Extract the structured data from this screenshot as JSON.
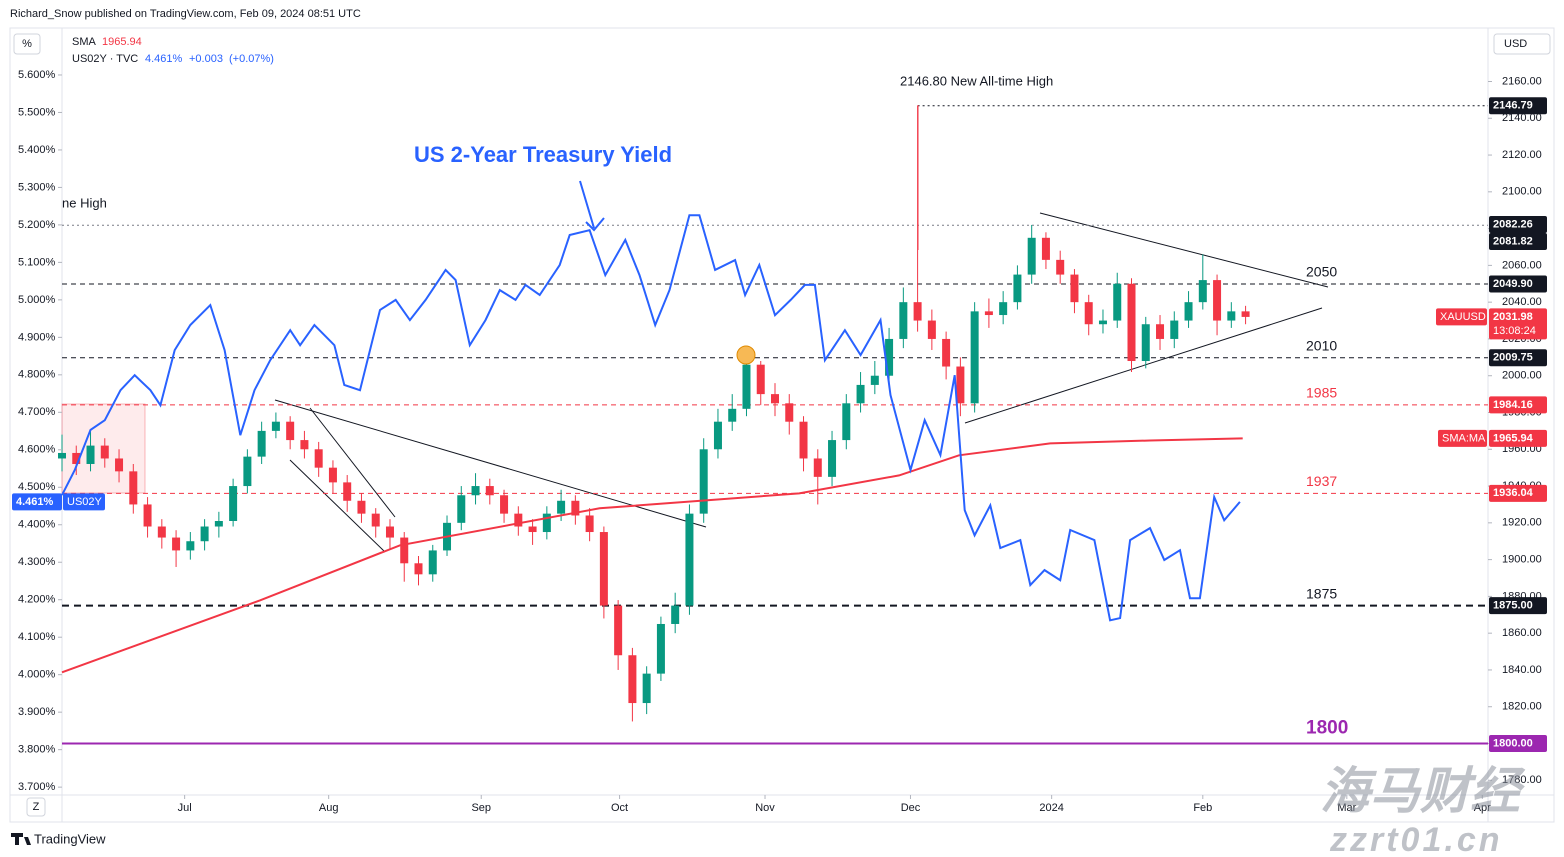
{
  "chart_data": {
    "type": "candlestick",
    "subtitle": "Richard_Snow published on TradingView.com, Feb 09, 2024 08:51 UTC",
    "grid": false,
    "xlim": [
      0,
      100
    ],
    "xticks": [
      {
        "value": 8.6,
        "label": "Jul"
      },
      {
        "value": 18.7,
        "label": "Aug"
      },
      {
        "value": 29.4,
        "label": "Sep"
      },
      {
        "value": 39.1,
        "label": "Oct"
      },
      {
        "value": 49.3,
        "label": "Nov"
      },
      {
        "value": 59.5,
        "label": "Dec"
      },
      {
        "value": 69.4,
        "label": "2024"
      },
      {
        "value": 80.0,
        "label": "Feb"
      },
      {
        "value": 90.1,
        "label": "Mar"
      },
      {
        "value": 99.6,
        "label": "Apr"
      }
    ],
    "y_axis_label": "USD",
    "ylim": [
      1772,
      2188
    ],
    "yticks": [
      {
        "value": 1780,
        "label": "1780.00"
      },
      {
        "value": 1800,
        "label": "1800.00"
      },
      {
        "value": 1820,
        "label": "1820.00"
      },
      {
        "value": 1840,
        "label": "1840.00"
      },
      {
        "value": 1860,
        "label": "1860.00"
      },
      {
        "value": 1880,
        "label": "1880.00"
      },
      {
        "value": 1900,
        "label": "1900.00"
      },
      {
        "value": 1920,
        "label": "1920.00"
      },
      {
        "value": 1940,
        "label": "1940.00"
      },
      {
        "value": 1960,
        "label": "1960.00"
      },
      {
        "value": 1980,
        "label": "1980.00"
      },
      {
        "value": 2000,
        "label": "2000.00"
      },
      {
        "value": 2020,
        "label": "2020.00"
      },
      {
        "value": 2040,
        "label": "2040.00"
      },
      {
        "value": 2060,
        "label": "2060.00"
      },
      {
        "value": 2080,
        "label": "2080.00"
      },
      {
        "value": 2100,
        "label": "2100.00"
      },
      {
        "value": 2120,
        "label": "2120.00"
      },
      {
        "value": 2140,
        "label": "2140.00"
      },
      {
        "value": 2160,
        "label": "2160.00"
      }
    ],
    "y2_axis_label": "%",
    "y2lim": [
      3.679,
      5.72
    ],
    "y2ticks": [
      {
        "value": 3.7,
        "label": "3.700%"
      },
      {
        "value": 3.8,
        "label": "3.800%"
      },
      {
        "value": 3.9,
        "label": "3.900%"
      },
      {
        "value": 4.0,
        "label": "4.000%"
      },
      {
        "value": 4.1,
        "label": "4.100%"
      },
      {
        "value": 4.2,
        "label": "4.200%"
      },
      {
        "value": 4.3,
        "label": "4.300%"
      },
      {
        "value": 4.4,
        "label": "4.400%"
      },
      {
        "value": 4.5,
        "label": "4.500%"
      },
      {
        "value": 4.6,
        "label": "4.600%"
      },
      {
        "value": 4.7,
        "label": "4.700%"
      },
      {
        "value": 4.8,
        "label": "4.800%"
      },
      {
        "value": 4.9,
        "label": "4.900%"
      },
      {
        "value": 5.0,
        "label": "5.000%"
      },
      {
        "value": 5.1,
        "label": "5.100%"
      },
      {
        "value": 5.2,
        "label": "5.200%"
      },
      {
        "value": 5.3,
        "label": "5.300%"
      },
      {
        "value": 5.4,
        "label": "5.400%"
      },
      {
        "value": 5.5,
        "label": "5.500%"
      },
      {
        "value": 5.6,
        "label": "5.600%"
      }
    ],
    "series": [
      {
        "name": "XAUUSD",
        "up_color": "#089981",
        "down_color": "#f23645",
        "last_time": "13:08:24",
        "open": [
          1955,
          1958,
          1952,
          1962,
          1955,
          1948,
          1930,
          1918,
          1912,
          1905,
          1910,
          1918,
          1921,
          1940,
          1956,
          1970,
          1975,
          1965,
          1960,
          1950,
          1942,
          1932,
          1925,
          1918,
          1912,
          1898,
          1892,
          1905,
          1920,
          1935,
          1940,
          1935,
          1925,
          1918,
          1915,
          1925,
          1932,
          1924,
          1915,
          1875,
          1848,
          1822,
          1838,
          1865,
          1875,
          1925,
          1960,
          1975,
          1982,
          2006,
          1990,
          1985,
          1975,
          1955,
          1945,
          1965,
          1985,
          1995,
          2000,
          2020,
          2040,
          2030,
          2020,
          2005,
          1985,
          2035,
          2033,
          2040,
          2055,
          2075,
          2063,
          2055,
          2040,
          2028,
          2030,
          2050,
          2008,
          2028,
          2020,
          2030,
          2040,
          2052,
          2030,
          2035
        ],
        "high": [
          1968,
          1962,
          1970,
          1966,
          1960,
          1952,
          1934,
          1922,
          1916,
          1915,
          1922,
          1926,
          1944,
          1960,
          1975,
          1980,
          1978,
          1970,
          1964,
          1954,
          1946,
          1936,
          1928,
          1922,
          1915,
          1902,
          1908,
          1924,
          1940,
          1947,
          1944,
          1938,
          1929,
          1922,
          1929,
          1938,
          1935,
          1928,
          1918,
          1878,
          1852,
          1842,
          1869,
          1882,
          1930,
          1966,
          1982,
          1990,
          2010,
          2008,
          1996,
          1990,
          1978,
          1960,
          1970,
          1990,
          2002,
          2008,
          2026,
          2048,
          2146.8,
          2036,
          2024,
          2010,
          2040,
          2042,
          2046,
          2060,
          2082,
          2078,
          2068,
          2058,
          2044,
          2036,
          2056,
          2053,
          2032,
          2033,
          2035,
          2046,
          2066,
          2055,
          2040,
          2038
        ],
        "low": [
          1948,
          1946,
          1948,
          1950,
          1942,
          1925,
          1912,
          1906,
          1896,
          1900,
          1905,
          1912,
          1918,
          1936,
          1952,
          1966,
          1960,
          1955,
          1945,
          1936,
          1926,
          1920,
          1912,
          1906,
          1888,
          1886,
          1888,
          1902,
          1916,
          1930,
          1930,
          1920,
          1913,
          1908,
          1911,
          1921,
          1919,
          1910,
          1868,
          1840,
          1812,
          1816,
          1834,
          1860,
          1870,
          1920,
          1955,
          1970,
          1978,
          1984,
          1978,
          1968,
          1948,
          1930,
          1940,
          1960,
          1980,
          1990,
          1996,
          2015,
          2024,
          2014,
          1998,
          1978,
          1980,
          2026,
          2028,
          2036,
          2050,
          2058,
          2050,
          2034,
          2022,
          2023,
          2026,
          2002,
          2004,
          2014,
          2015,
          2026,
          2036,
          2022,
          2026,
          2028
        ],
        "close": [
          1958,
          1952,
          1962,
          1955,
          1948,
          1930,
          1918,
          1912,
          1905,
          1910,
          1918,
          1921,
          1940,
          1956,
          1970,
          1975,
          1965,
          1960,
          1950,
          1942,
          1932,
          1925,
          1918,
          1912,
          1898,
          1892,
          1905,
          1920,
          1935,
          1940,
          1935,
          1925,
          1918,
          1915,
          1925,
          1932,
          1924,
          1915,
          1875,
          1848,
          1822,
          1838,
          1865,
          1875,
          1925,
          1960,
          1975,
          1982,
          2006,
          1990,
          1985,
          1975,
          1955,
          1945,
          1965,
          1985,
          1995,
          2000,
          2020,
          2040,
          2030,
          2020,
          2005,
          1985,
          2035,
          2033,
          2040,
          2055,
          2075,
          2063,
          2055,
          2040,
          2028,
          2030,
          2050,
          2008,
          2028,
          2020,
          2030,
          2040,
          2052,
          2030,
          2035,
          2031.98
        ]
      },
      {
        "name": "SMA",
        "box_name": "SMA:MA",
        "type": "line",
        "color": "#f23645",
        "x": [
          0,
          13.9,
          23.7,
          37.7,
          51.7,
          58.7,
          62.9,
          69.3,
          76.3,
          82.8
        ],
        "values": [
          1838.7,
          1877.9,
          1907.8,
          1927.9,
          1936.0,
          1945.8,
          1956.7,
          1963.2,
          1964.8,
          1965.94
        ]
      },
      {
        "name": "US02Y",
        "legend_name": "US02Y · TVC",
        "type": "line",
        "axis": "y2",
        "color": "#2962ff",
        "last_label": "4.461%",
        "change": "+0.003",
        "change_pct": "(+0.07%)",
        "x": [
          0,
          0.9,
          2,
          3,
          4.1,
          5.1,
          6.2,
          6.9,
          7.9,
          9,
          10.4,
          11.4,
          12.5,
          13.5,
          14.6,
          16,
          16.7,
          17.7,
          19.1,
          19.8,
          20.9,
          22.3,
          23.4,
          24.4,
          25.5,
          26.2,
          26.9,
          27.6,
          28.6,
          29.7,
          30.7,
          31.8,
          32.5,
          33.5,
          34.9,
          35.6,
          37,
          38.1,
          39.5,
          40.5,
          41.6,
          42.6,
          44,
          44.7,
          45.8,
          47.2,
          47.9,
          48.9,
          50,
          51.1,
          52.1,
          52.8,
          53.5,
          54.9,
          56,
          57.4,
          58.1,
          59.5,
          60.5,
          61.6,
          62.6,
          63.3,
          64,
          65.1,
          65.8,
          67.2,
          67.9,
          68.9,
          70,
          70.7,
          72.4,
          73.5,
          74.2,
          74.9,
          76.3,
          77.3,
          78.4,
          79.1,
          79.8,
          80.8,
          81.5,
          82.6
        ],
        "values": [
          4.479,
          4.546,
          4.653,
          4.679,
          4.759,
          4.799,
          4.759,
          4.719,
          4.866,
          4.933,
          4.986,
          4.866,
          4.639,
          4.759,
          4.839,
          4.919,
          4.879,
          4.933,
          4.879,
          4.773,
          4.759,
          4.973,
          5.0,
          4.946,
          5.0,
          5.04,
          5.08,
          5.053,
          4.879,
          4.946,
          5.026,
          5.0,
          5.04,
          5.013,
          5.093,
          5.173,
          5.186,
          5.066,
          5.16,
          5.066,
          4.933,
          5.026,
          5.226,
          5.226,
          5.08,
          5.106,
          5.013,
          5.093,
          4.959,
          5.0,
          5.04,
          5.04,
          4.839,
          4.919,
          4.853,
          4.946,
          4.746,
          4.546,
          4.679,
          4.586,
          4.799,
          4.439,
          4.372,
          4.452,
          4.338,
          4.359,
          4.239,
          4.279,
          4.252,
          4.386,
          4.359,
          4.145,
          4.151,
          4.359,
          4.391,
          4.306,
          4.332,
          4.204,
          4.204,
          4.474,
          4.412,
          4.461
        ]
      }
    ],
    "levels": [
      {
        "value": 2146.79,
        "label": "2146.79",
        "color": "#131722",
        "style": "dotted",
        "from": 60
      },
      {
        "value": 2082.26,
        "label": "2082.26",
        "color": "#131722",
        "style": "none"
      },
      {
        "value": 2081.82,
        "label": "2081.82",
        "color": "#131722",
        "style": "dotted"
      },
      {
        "value": 2049.9,
        "label": "2049.90",
        "color": "#131722",
        "style": "dashed",
        "note": "2050"
      },
      {
        "value": 2009.75,
        "label": "2009.75",
        "color": "#131722",
        "style": "dashed",
        "note": "2010"
      },
      {
        "value": 1984.16,
        "label": "1984.16",
        "color": "#f23645",
        "style": "dashed",
        "note": "1985"
      },
      {
        "value": 1936.04,
        "label": "1936.04",
        "color": "#f23645",
        "style": "dashed",
        "note": "1937"
      },
      {
        "value": 1875.0,
        "label": "1875.00",
        "color": "#131722",
        "style": "bold-dashed",
        "note": "1875"
      },
      {
        "value": 1800.0,
        "label": "1800.00",
        "color": "#9c27b0",
        "style": "solid",
        "note": "1800"
      }
    ],
    "annotations": [
      "US 2-Year Treasury Yield",
      "2146.80 New All-time High",
      "ne High"
    ],
    "footer": {
      "logo": "TradingView",
      "zoom": "Z",
      "watermark": "海马财经",
      "watermark_url": "zzrt01.cn"
    }
  }
}
